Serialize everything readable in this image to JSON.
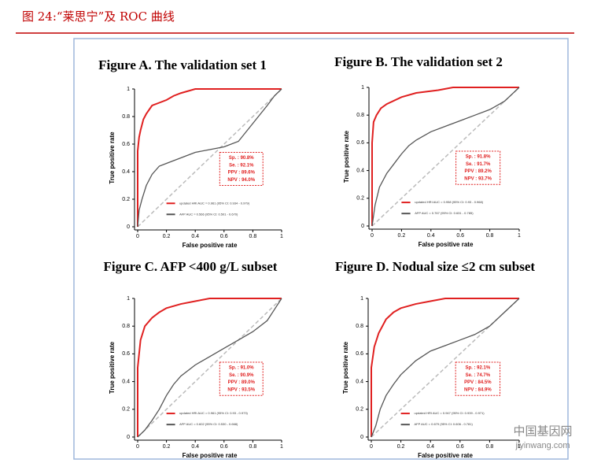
{
  "header": {
    "title": "图 24:“莱思宁”及 ROC 曲线"
  },
  "watermark": {
    "name": "中国基因网",
    "url": "jiyinwang.com"
  },
  "chart_data": [
    {
      "type": "line",
      "title": "Figure A.  The validation set 1",
      "x_label": "False positive rate",
      "y_label": "True positive rate",
      "xlim": [
        0,
        1
      ],
      "ylim": [
        0,
        1
      ],
      "xticks": [
        0,
        0.2,
        0.4,
        0.6,
        0.8,
        1
      ],
      "yticks": [
        0,
        0.2,
        0.4,
        0.6,
        0.8,
        1
      ],
      "annotations": [
        "Sp. : 90.8%",
        "Se. : 92.1%",
        "PPV : 89.6%",
        "NPV : 94.0%"
      ],
      "series": [
        {
          "name": "updated HRI AUC = 0.961 (95% CI: 0.934 - 0.979)",
          "color": "#e02020",
          "x": [
            0,
            0,
            0.01,
            0.02,
            0.04,
            0.06,
            0.1,
            0.15,
            0.2,
            0.25,
            0.3,
            0.4,
            1
          ],
          "values": [
            0,
            0.55,
            0.65,
            0.7,
            0.78,
            0.82,
            0.88,
            0.9,
            0.92,
            0.95,
            0.97,
            1,
            1
          ]
        },
        {
          "name": "AFP AUC = 0.566 (95% CI: 0.501 - 0.670)",
          "color": "#555555",
          "x": [
            0,
            0.01,
            0.03,
            0.06,
            0.1,
            0.15,
            0.2,
            0.3,
            0.4,
            0.5,
            0.6,
            0.7,
            0.8,
            0.9,
            0.95,
            1
          ],
          "values": [
            0,
            0.12,
            0.2,
            0.3,
            0.38,
            0.44,
            0.46,
            0.5,
            0.54,
            0.56,
            0.58,
            0.62,
            0.75,
            0.88,
            0.95,
            1
          ]
        }
      ]
    },
    {
      "type": "line",
      "title": "Figure B. The validation set 2",
      "x_label": "False positive rate",
      "y_label": "True positive rate",
      "xlim": [
        0,
        1
      ],
      "ylim": [
        0,
        1
      ],
      "xticks": [
        0,
        0.2,
        0.4,
        0.6,
        0.8,
        1
      ],
      "yticks": [
        0,
        0.2,
        0.4,
        0.6,
        0.8,
        1
      ],
      "annotations": [
        "Sp. : 91.8%",
        "Se. : 91.7%",
        "PPV : 89.2%",
        "NPV : 93.7%"
      ],
      "series": [
        {
          "name": "updated HRI AUC = 0.958 (95% CI: 0.93 - 0.968)",
          "color": "#e02020",
          "x": [
            0,
            0,
            0.01,
            0.03,
            0.06,
            0.1,
            0.2,
            0.3,
            0.45,
            0.55,
            1
          ],
          "values": [
            0,
            0.6,
            0.75,
            0.8,
            0.85,
            0.88,
            0.93,
            0.96,
            0.98,
            1,
            1
          ]
        },
        {
          "name": "AFP AUC = 0.767 (95% CI: 0.631 - 0.785)",
          "color": "#555555",
          "x": [
            0,
            0.02,
            0.05,
            0.1,
            0.15,
            0.2,
            0.25,
            0.3,
            0.4,
            0.5,
            0.6,
            0.7,
            0.8,
            0.9,
            0.95,
            1
          ],
          "values": [
            0,
            0.15,
            0.28,
            0.38,
            0.45,
            0.52,
            0.58,
            0.62,
            0.68,
            0.72,
            0.76,
            0.8,
            0.84,
            0.9,
            0.95,
            1
          ]
        }
      ]
    },
    {
      "type": "line",
      "title": "Figure C. AFP <400 g/L subset",
      "x_label": "False positive rate",
      "y_label": "True positive rate",
      "xlim": [
        0,
        1
      ],
      "ylim": [
        0,
        1
      ],
      "xticks": [
        0,
        0.2,
        0.4,
        0.6,
        0.8,
        1
      ],
      "yticks": [
        0,
        0.2,
        0.4,
        0.6,
        0.8,
        1
      ],
      "annotations": [
        "Sp. : 91.0%",
        "Se. : 90.9%",
        "PPV : 89.0%",
        "NPV : 93.5%"
      ],
      "series": [
        {
          "name": "updated HRI AUC = 0.961 (95% CI: 0.93 - 0.973)",
          "color": "#e02020",
          "x": [
            0,
            0,
            0.02,
            0.05,
            0.1,
            0.15,
            0.2,
            0.3,
            0.4,
            0.5,
            1
          ],
          "values": [
            0,
            0.5,
            0.7,
            0.8,
            0.86,
            0.9,
            0.93,
            0.96,
            0.98,
            1,
            1
          ]
        },
        {
          "name": "AFP AUC = 0.602 (95% CI: 0.530 - 0.668)",
          "color": "#555555",
          "x": [
            0,
            0.05,
            0.1,
            0.15,
            0.2,
            0.25,
            0.3,
            0.4,
            0.5,
            0.6,
            0.7,
            0.8,
            0.9,
            0.95,
            1
          ],
          "values": [
            0,
            0.05,
            0.12,
            0.2,
            0.3,
            0.38,
            0.44,
            0.52,
            0.58,
            0.64,
            0.7,
            0.76,
            0.84,
            0.92,
            1
          ]
        }
      ]
    },
    {
      "type": "line",
      "title": "Figure D. Nodual size ≤2 cm subset",
      "x_label": "False positive rate",
      "y_label": "True positive rate",
      "xlim": [
        0,
        1
      ],
      "ylim": [
        0,
        1
      ],
      "xticks": [
        0,
        0.2,
        0.4,
        0.6,
        0.8,
        1
      ],
      "yticks": [
        0,
        0.2,
        0.4,
        0.6,
        0.8,
        1
      ],
      "annotations": [
        "Sp. : 92.1%",
        "Se. : 74.7%",
        "PPV : 84.5%",
        "NPV : 84.9%"
      ],
      "series": [
        {
          "name": "updated HRI AUC = 0.947 (95% CI: 0.939 - 0.971)",
          "color": "#e02020",
          "x": [
            0,
            0,
            0.02,
            0.05,
            0.1,
            0.15,
            0.2,
            0.3,
            0.4,
            0.5,
            1
          ],
          "values": [
            0,
            0.5,
            0.65,
            0.75,
            0.85,
            0.9,
            0.93,
            0.96,
            0.98,
            1,
            1
          ]
        },
        {
          "name": "AFP AUC = 0.679 (95% CI: 0.606 - 0.781)",
          "color": "#555555",
          "x": [
            0,
            0.03,
            0.06,
            0.1,
            0.15,
            0.2,
            0.3,
            0.4,
            0.5,
            0.6,
            0.7,
            0.8,
            0.9,
            1
          ],
          "values": [
            0,
            0.08,
            0.2,
            0.3,
            0.38,
            0.45,
            0.55,
            0.62,
            0.66,
            0.7,
            0.74,
            0.8,
            0.9,
            1
          ]
        }
      ]
    }
  ]
}
